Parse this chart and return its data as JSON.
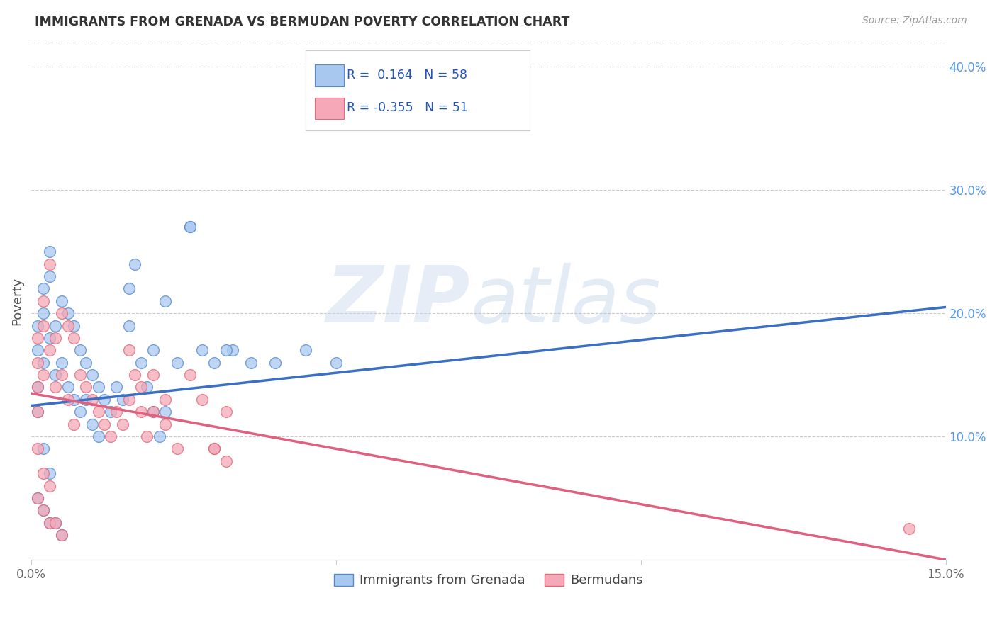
{
  "title": "IMMIGRANTS FROM GRENADA VS BERMUDAN POVERTY CORRELATION CHART",
  "source": "Source: ZipAtlas.com",
  "ylabel": "Poverty",
  "ylabel_right_labels": [
    "40.0%",
    "30.0%",
    "20.0%",
    "10.0%"
  ],
  "ylabel_right_values": [
    0.4,
    0.3,
    0.2,
    0.1
  ],
  "x_min": 0.0,
  "x_max": 0.15,
  "y_min": 0.0,
  "y_max": 0.42,
  "legend_entry1": "R =  0.164   N = 58",
  "legend_entry2": "R = -0.355   N = 51",
  "legend_label1": "Immigrants from Grenada",
  "legend_label2": "Bermudans",
  "color_blue": "#a8c8f0",
  "color_pink": "#f4a8b8",
  "color_blue_edge": "#5588cc",
  "color_pink_edge": "#e06878",
  "color_blue_line": "#3a6fc4",
  "color_pink_line": "#e06080",
  "color_dashed": "#a0b8d8",
  "blue_line_x0": 0.0,
  "blue_line_x1": 0.15,
  "blue_line_y0": 0.125,
  "blue_line_y1": 0.205,
  "pink_line_x0": 0.0,
  "pink_line_x1": 0.15,
  "pink_line_y0": 0.135,
  "pink_line_y1": 0.0,
  "blue_x": [
    0.001,
    0.001,
    0.001,
    0.002,
    0.002,
    0.002,
    0.003,
    0.003,
    0.003,
    0.004,
    0.004,
    0.005,
    0.005,
    0.006,
    0.006,
    0.007,
    0.007,
    0.008,
    0.008,
    0.009,
    0.009,
    0.01,
    0.01,
    0.011,
    0.011,
    0.012,
    0.013,
    0.014,
    0.015,
    0.016,
    0.017,
    0.018,
    0.019,
    0.02,
    0.021,
    0.022,
    0.024,
    0.026,
    0.028,
    0.03,
    0.033,
    0.036,
    0.04,
    0.045,
    0.05,
    0.001,
    0.002,
    0.003,
    0.001,
    0.002,
    0.003,
    0.004,
    0.005,
    0.016,
    0.02,
    0.022,
    0.026,
    0.032
  ],
  "blue_y": [
    0.19,
    0.17,
    0.14,
    0.22,
    0.2,
    0.16,
    0.25,
    0.23,
    0.18,
    0.19,
    0.15,
    0.21,
    0.16,
    0.2,
    0.14,
    0.19,
    0.13,
    0.17,
    0.12,
    0.16,
    0.13,
    0.15,
    0.11,
    0.14,
    0.1,
    0.13,
    0.12,
    0.14,
    0.13,
    0.22,
    0.24,
    0.16,
    0.14,
    0.12,
    0.1,
    0.12,
    0.16,
    0.27,
    0.17,
    0.16,
    0.17,
    0.16,
    0.16,
    0.17,
    0.16,
    0.12,
    0.09,
    0.07,
    0.05,
    0.04,
    0.03,
    0.03,
    0.02,
    0.19,
    0.17,
    0.21,
    0.27,
    0.17
  ],
  "pink_x": [
    0.001,
    0.001,
    0.001,
    0.001,
    0.002,
    0.002,
    0.002,
    0.003,
    0.003,
    0.004,
    0.004,
    0.005,
    0.005,
    0.006,
    0.006,
    0.007,
    0.007,
    0.008,
    0.009,
    0.01,
    0.011,
    0.012,
    0.013,
    0.014,
    0.015,
    0.016,
    0.017,
    0.018,
    0.019,
    0.02,
    0.022,
    0.024,
    0.026,
    0.028,
    0.03,
    0.032,
    0.001,
    0.002,
    0.003,
    0.001,
    0.002,
    0.003,
    0.004,
    0.005,
    0.016,
    0.018,
    0.02,
    0.022,
    0.03,
    0.032,
    0.144
  ],
  "pink_y": [
    0.18,
    0.16,
    0.14,
    0.12,
    0.21,
    0.19,
    0.15,
    0.24,
    0.17,
    0.18,
    0.14,
    0.2,
    0.15,
    0.19,
    0.13,
    0.18,
    0.11,
    0.15,
    0.14,
    0.13,
    0.12,
    0.11,
    0.1,
    0.12,
    0.11,
    0.13,
    0.15,
    0.12,
    0.1,
    0.12,
    0.11,
    0.09,
    0.15,
    0.13,
    0.09,
    0.12,
    0.09,
    0.07,
    0.06,
    0.05,
    0.04,
    0.03,
    0.03,
    0.02,
    0.17,
    0.14,
    0.15,
    0.13,
    0.09,
    0.08,
    0.025
  ]
}
